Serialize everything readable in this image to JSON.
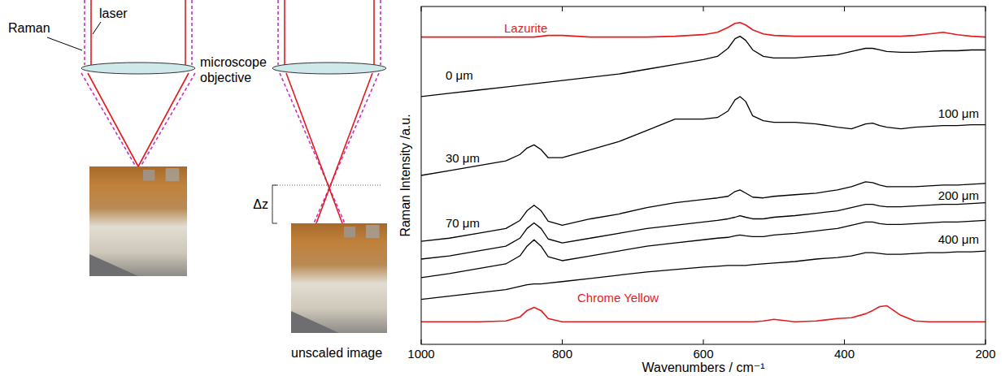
{
  "diagram": {
    "raman_label": "Raman",
    "laser_label": "laser",
    "objective_label": "microscope objective",
    "dz_label": "Δz",
    "image_label": "unscaled image"
  },
  "chart_data": {
    "type": "line",
    "y_label": "Raman Intensity /a.u.",
    "x_label": "Wavenumbers / cm⁻¹",
    "x": [
      1000,
      960,
      920,
      880,
      860,
      850,
      840,
      830,
      820,
      800,
      760,
      720,
      680,
      640,
      600,
      580,
      565,
      555,
      548,
      540,
      530,
      515,
      500,
      470,
      440,
      410,
      390,
      370,
      360,
      350,
      340,
      320,
      300,
      280,
      260,
      240,
      220,
      200
    ],
    "xlim": [
      1000,
      200
    ],
    "xticks": [
      1000,
      800,
      600,
      400,
      200
    ],
    "ylim": [
      0,
      420
    ],
    "tick_labels": "x",
    "series": [
      {
        "name": "Lazurite",
        "color": "#e41a1c",
        "values": [
          382,
          382,
          382,
          382,
          382,
          382,
          382,
          383,
          384,
          384,
          382,
          382,
          382,
          383,
          385,
          388,
          394,
          399,
          400,
          397,
          391,
          386,
          384,
          383,
          383,
          383,
          383,
          383,
          383,
          383,
          383,
          383,
          384,
          386,
          388,
          385,
          383,
          382
        ]
      },
      {
        "name": "0 μm",
        "color": "#000000",
        "values": [
          308,
          312,
          316,
          320,
          322,
          323,
          324,
          325,
          326,
          328,
          332,
          336,
          342,
          348,
          354,
          358,
          368,
          380,
          383,
          378,
          366,
          358,
          356,
          356,
          358,
          360,
          364,
          368,
          368,
          366,
          364,
          363,
          363,
          364,
          365,
          365,
          366,
          366
        ]
      },
      {
        "name": "30 μm",
        "color": "#000000",
        "values": [
          210,
          216,
          222,
          228,
          236,
          244,
          248,
          242,
          232,
          232,
          242,
          252,
          266,
          280,
          280,
          282,
          290,
          304,
          308,
          302,
          284,
          278,
          276,
          276,
          274,
          270,
          268,
          274,
          275,
          272,
          270,
          268,
          270,
          271,
          272,
          272,
          273,
          273
        ]
      },
      {
        "name": "70 μm",
        "color": "#000000",
        "values": [
          128,
          132,
          138,
          144,
          154,
          166,
          173,
          166,
          153,
          148,
          156,
          162,
          170,
          176,
          180,
          182,
          184,
          190,
          192,
          188,
          183,
          182,
          184,
          186,
          188,
          192,
          196,
          202,
          201,
          198,
          196,
          196,
          196,
          197,
          198,
          198,
          199,
          200
        ]
      },
      {
        "name": "100 μm",
        "color": "#000000",
        "values": [
          106,
          110,
          116,
          122,
          132,
          144,
          151,
          144,
          131,
          126,
          132,
          138,
          144,
          148,
          152,
          154,
          156,
          158,
          160,
          158,
          156,
          156,
          158,
          160,
          163,
          166,
          170,
          174,
          174,
          172,
          171,
          171,
          172,
          173,
          174,
          174,
          175,
          176
        ]
      },
      {
        "name": "200 μm",
        "color": "#000000",
        "values": [
          83,
          88,
          94,
          100,
          110,
          122,
          130,
          122,
          109,
          104,
          110,
          116,
          122,
          126,
          130,
          132,
          133,
          135,
          136,
          135,
          134,
          134,
          136,
          138,
          141,
          144,
          148,
          152,
          152,
          150,
          149,
          149,
          150,
          151,
          152,
          152,
          153,
          154
        ]
      },
      {
        "name": "400 μm",
        "color": "#000000",
        "values": [
          56,
          60,
          64,
          68,
          72,
          74,
          75,
          75,
          76,
          78,
          82,
          86,
          90,
          93,
          96,
          97,
          98,
          98,
          98,
          98,
          99,
          100,
          101,
          103,
          106,
          108,
          110,
          114,
          114,
          113,
          112,
          112,
          113,
          114,
          114,
          115,
          115,
          116
        ]
      },
      {
        "name": "Chrome Yellow",
        "color": "#e41a1c",
        "values": [
          28,
          28,
          28,
          29,
          34,
          42,
          46,
          42,
          32,
          28,
          28,
          28,
          28,
          28,
          28,
          28,
          28,
          28,
          28,
          28,
          28,
          29,
          31,
          28,
          29,
          32,
          33,
          38,
          42,
          47,
          48,
          36,
          29,
          28,
          28,
          28,
          28,
          28
        ]
      }
    ]
  }
}
